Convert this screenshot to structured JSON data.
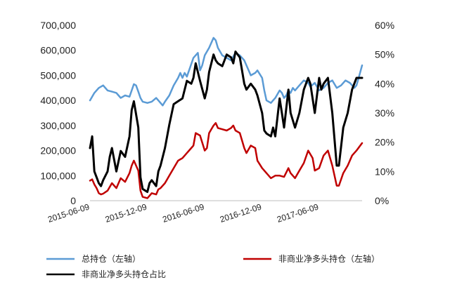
{
  "chart_data": {
    "type": "line",
    "title": "",
    "xlabel": "",
    "ylabel_left": "",
    "ylabel_right": "",
    "left_axis": {
      "min": 0,
      "max": 700000,
      "ticks": [
        "0",
        "100,000",
        "200,000",
        "300,000",
        "400,000",
        "500,000",
        "600,000",
        "700,000"
      ]
    },
    "right_axis": {
      "min": 0,
      "max": 60,
      "ticks": [
        "0%",
        "10%",
        "20%",
        "30%",
        "40%",
        "50%",
        "60%"
      ]
    },
    "x_range": [
      "2015-06-09",
      "2017-10-24"
    ],
    "x_tick_labels": [
      "2015-06-09",
      "2015-12-09",
      "2016-06-09",
      "2016-12-09",
      "2017-06-09"
    ],
    "grid": false,
    "legend_position": "bottom",
    "series": [
      {
        "name": "总持仓（左轴）",
        "axis": "left",
        "color": "#5b9bd5",
        "points": [
          [
            "2015-06-09",
            400000
          ],
          [
            "2015-06-23",
            430000
          ],
          [
            "2015-07-07",
            450000
          ],
          [
            "2015-07-21",
            460000
          ],
          [
            "2015-08-04",
            440000
          ],
          [
            "2015-08-18",
            435000
          ],
          [
            "2015-09-01",
            430000
          ],
          [
            "2015-09-08",
            420000
          ],
          [
            "2015-09-15",
            410000
          ],
          [
            "2015-09-29",
            420000
          ],
          [
            "2015-10-13",
            415000
          ],
          [
            "2015-10-20",
            440000
          ],
          [
            "2015-10-27",
            465000
          ],
          [
            "2015-11-03",
            460000
          ],
          [
            "2015-11-10",
            435000
          ],
          [
            "2015-11-17",
            410000
          ],
          [
            "2015-11-24",
            395000
          ],
          [
            "2015-12-09",
            390000
          ],
          [
            "2015-12-23",
            395000
          ],
          [
            "2016-01-06",
            410000
          ],
          [
            "2016-01-13",
            400000
          ],
          [
            "2016-01-20",
            390000
          ],
          [
            "2016-01-27",
            380000
          ],
          [
            "2016-02-03",
            395000
          ],
          [
            "2016-02-17",
            420000
          ],
          [
            "2016-03-02",
            460000
          ],
          [
            "2016-03-16",
            490000
          ],
          [
            "2016-03-23",
            510000
          ],
          [
            "2016-03-30",
            490000
          ],
          [
            "2016-04-06",
            510000
          ],
          [
            "2016-04-13",
            495000
          ],
          [
            "2016-04-20",
            520000
          ],
          [
            "2016-05-04",
            570000
          ],
          [
            "2016-05-18",
            590000
          ],
          [
            "2016-05-25",
            520000
          ],
          [
            "2016-06-01",
            540000
          ],
          [
            "2016-06-09",
            580000
          ],
          [
            "2016-06-23",
            610000
          ],
          [
            "2016-07-07",
            650000
          ],
          [
            "2016-07-14",
            640000
          ],
          [
            "2016-07-21",
            610000
          ],
          [
            "2016-08-04",
            580000
          ],
          [
            "2016-08-18",
            570000
          ],
          [
            "2016-09-01",
            560000
          ],
          [
            "2016-09-15",
            590000
          ],
          [
            "2016-09-29",
            580000
          ],
          [
            "2016-10-13",
            560000
          ],
          [
            "2016-10-20",
            540000
          ],
          [
            "2016-11-03",
            500000
          ],
          [
            "2016-11-17",
            510000
          ],
          [
            "2016-11-24",
            520000
          ],
          [
            "2016-12-09",
            490000
          ],
          [
            "2016-12-16",
            440000
          ],
          [
            "2016-12-23",
            400000
          ],
          [
            "2017-01-06",
            390000
          ],
          [
            "2017-01-13",
            400000
          ],
          [
            "2017-01-20",
            410000
          ],
          [
            "2017-02-03",
            440000
          ],
          [
            "2017-02-10",
            430000
          ],
          [
            "2017-02-17",
            410000
          ],
          [
            "2017-02-24",
            420000
          ],
          [
            "2017-03-03",
            440000
          ],
          [
            "2017-03-10",
            430000
          ],
          [
            "2017-03-17",
            450000
          ],
          [
            "2017-03-24",
            440000
          ],
          [
            "2017-04-07",
            460000
          ],
          [
            "2017-04-21",
            480000
          ],
          [
            "2017-05-05",
            470000
          ],
          [
            "2017-05-12",
            455000
          ],
          [
            "2017-05-26",
            470000
          ],
          [
            "2017-06-09",
            440000
          ],
          [
            "2017-06-23",
            450000
          ],
          [
            "2017-07-07",
            470000
          ],
          [
            "2017-07-21",
            480000
          ],
          [
            "2017-08-04",
            450000
          ],
          [
            "2017-08-18",
            460000
          ],
          [
            "2017-09-01",
            480000
          ],
          [
            "2017-09-15",
            470000
          ],
          [
            "2017-09-29",
            450000
          ],
          [
            "2017-10-06",
            460000
          ],
          [
            "2017-10-13",
            490000
          ],
          [
            "2017-10-24",
            540000
          ]
        ]
      },
      {
        "name": "非商业净多头持仓（左轴）",
        "axis": "left",
        "color": "#c00000",
        "points": [
          [
            "2015-06-09",
            80000
          ],
          [
            "2015-06-16",
            85000
          ],
          [
            "2015-06-23",
            65000
          ],
          [
            "2015-06-30",
            50000
          ],
          [
            "2015-07-07",
            30000
          ],
          [
            "2015-07-14",
            25000
          ],
          [
            "2015-07-21",
            28000
          ],
          [
            "2015-08-04",
            40000
          ],
          [
            "2015-08-18",
            70000
          ],
          [
            "2015-09-01",
            50000
          ],
          [
            "2015-09-15",
            90000
          ],
          [
            "2015-09-29",
            75000
          ],
          [
            "2015-10-13",
            110000
          ],
          [
            "2015-10-20",
            140000
          ],
          [
            "2015-10-27",
            160000
          ],
          [
            "2015-11-10",
            120000
          ],
          [
            "2015-11-17",
            40000
          ],
          [
            "2015-11-24",
            15000
          ],
          [
            "2015-12-09",
            10000
          ],
          [
            "2015-12-16",
            20000
          ],
          [
            "2015-12-23",
            30000
          ],
          [
            "2016-01-06",
            25000
          ],
          [
            "2016-01-13",
            45000
          ],
          [
            "2016-01-20",
            50000
          ],
          [
            "2016-02-03",
            70000
          ],
          [
            "2016-02-17",
            100000
          ],
          [
            "2016-03-02",
            130000
          ],
          [
            "2016-03-16",
            160000
          ],
          [
            "2016-03-30",
            170000
          ],
          [
            "2016-04-13",
            190000
          ],
          [
            "2016-04-27",
            210000
          ],
          [
            "2016-05-04",
            220000
          ],
          [
            "2016-05-11",
            270000
          ],
          [
            "2016-05-25",
            260000
          ],
          [
            "2016-06-09",
            200000
          ],
          [
            "2016-06-16",
            210000
          ],
          [
            "2016-06-23",
            270000
          ],
          [
            "2016-07-07",
            300000
          ],
          [
            "2016-07-14",
            310000
          ],
          [
            "2016-07-21",
            290000
          ],
          [
            "2016-08-04",
            285000
          ],
          [
            "2016-08-18",
            280000
          ],
          [
            "2016-09-01",
            290000
          ],
          [
            "2016-09-08",
            300000
          ],
          [
            "2016-09-15",
            280000
          ],
          [
            "2016-09-29",
            270000
          ],
          [
            "2016-10-13",
            210000
          ],
          [
            "2016-10-20",
            190000
          ],
          [
            "2016-11-03",
            220000
          ],
          [
            "2016-11-17",
            210000
          ],
          [
            "2016-11-24",
            160000
          ],
          [
            "2016-12-09",
            130000
          ],
          [
            "2016-12-23",
            110000
          ],
          [
            "2017-01-06",
            90000
          ],
          [
            "2017-01-20",
            100000
          ],
          [
            "2017-02-03",
            100000
          ],
          [
            "2017-02-17",
            95000
          ],
          [
            "2017-03-03",
            130000
          ],
          [
            "2017-03-10",
            110000
          ],
          [
            "2017-03-24",
            90000
          ],
          [
            "2017-04-07",
            120000
          ],
          [
            "2017-04-21",
            150000
          ],
          [
            "2017-05-05",
            200000
          ],
          [
            "2017-05-19",
            170000
          ],
          [
            "2017-05-26",
            120000
          ],
          [
            "2017-06-09",
            130000
          ],
          [
            "2017-06-23",
            180000
          ],
          [
            "2017-07-07",
            200000
          ],
          [
            "2017-07-21",
            140000
          ],
          [
            "2017-08-04",
            60000
          ],
          [
            "2017-08-11",
            60000
          ],
          [
            "2017-08-25",
            110000
          ],
          [
            "2017-09-08",
            140000
          ],
          [
            "2017-09-22",
            180000
          ],
          [
            "2017-10-06",
            200000
          ],
          [
            "2017-10-24",
            230000
          ]
        ]
      },
      {
        "name": "非商业净多头持仓占比",
        "axis": "right",
        "color": "#000000",
        "points": [
          [
            "2015-06-09",
            18
          ],
          [
            "2015-06-16",
            22
          ],
          [
            "2015-06-23",
            10
          ],
          [
            "2015-06-30",
            8
          ],
          [
            "2015-07-07",
            6
          ],
          [
            "2015-07-14",
            5
          ],
          [
            "2015-07-21",
            7
          ],
          [
            "2015-08-04",
            10
          ],
          [
            "2015-08-11",
            15
          ],
          [
            "2015-08-18",
            18
          ],
          [
            "2015-09-01",
            10
          ],
          [
            "2015-09-15",
            17
          ],
          [
            "2015-09-29",
            15
          ],
          [
            "2015-10-13",
            22
          ],
          [
            "2015-10-20",
            31
          ],
          [
            "2015-10-27",
            34
          ],
          [
            "2015-11-10",
            25
          ],
          [
            "2015-11-17",
            8
          ],
          [
            "2015-11-24",
            4
          ],
          [
            "2015-12-09",
            3
          ],
          [
            "2015-12-16",
            6
          ],
          [
            "2015-12-23",
            7
          ],
          [
            "2016-01-06",
            5
          ],
          [
            "2016-01-13",
            10
          ],
          [
            "2016-01-20",
            12
          ],
          [
            "2016-02-03",
            18
          ],
          [
            "2016-02-17",
            26
          ],
          [
            "2016-03-02",
            33
          ],
          [
            "2016-03-16",
            34
          ],
          [
            "2016-03-30",
            35
          ],
          [
            "2016-04-13",
            41
          ],
          [
            "2016-04-27",
            40
          ],
          [
            "2016-05-04",
            42
          ],
          [
            "2016-05-11",
            47
          ],
          [
            "2016-05-25",
            41
          ],
          [
            "2016-06-09",
            35
          ],
          [
            "2016-06-16",
            38
          ],
          [
            "2016-06-23",
            44
          ],
          [
            "2016-07-07",
            50
          ],
          [
            "2016-07-14",
            48
          ],
          [
            "2016-07-21",
            47
          ],
          [
            "2016-08-04",
            46
          ],
          [
            "2016-08-11",
            48
          ],
          [
            "2016-08-18",
            50
          ],
          [
            "2016-09-01",
            49
          ],
          [
            "2016-09-08",
            47
          ],
          [
            "2016-09-15",
            51
          ],
          [
            "2016-09-29",
            49
          ],
          [
            "2016-10-13",
            40
          ],
          [
            "2016-10-20",
            38
          ],
          [
            "2016-11-03",
            40
          ],
          [
            "2016-11-17",
            38
          ],
          [
            "2016-11-24",
            36
          ],
          [
            "2016-12-09",
            30
          ],
          [
            "2016-12-16",
            24
          ],
          [
            "2016-12-23",
            23
          ],
          [
            "2017-01-06",
            22
          ],
          [
            "2017-01-13",
            25
          ],
          [
            "2017-01-20",
            22
          ],
          [
            "2017-02-03",
            35
          ],
          [
            "2017-02-10",
            30
          ],
          [
            "2017-02-17",
            25
          ],
          [
            "2017-03-03",
            38
          ],
          [
            "2017-03-10",
            30
          ],
          [
            "2017-03-24",
            25
          ],
          [
            "2017-04-07",
            30
          ],
          [
            "2017-04-21",
            38
          ],
          [
            "2017-05-05",
            42
          ],
          [
            "2017-05-12",
            40
          ],
          [
            "2017-05-26",
            30
          ],
          [
            "2017-06-09",
            42
          ],
          [
            "2017-06-16",
            38
          ],
          [
            "2017-06-23",
            40
          ],
          [
            "2017-07-07",
            42
          ],
          [
            "2017-07-21",
            30
          ],
          [
            "2017-08-04",
            12
          ],
          [
            "2017-08-11",
            12
          ],
          [
            "2017-08-25",
            25
          ],
          [
            "2017-09-08",
            30
          ],
          [
            "2017-09-22",
            38
          ],
          [
            "2017-10-06",
            42
          ],
          [
            "2017-10-24",
            42
          ]
        ]
      }
    ]
  }
}
